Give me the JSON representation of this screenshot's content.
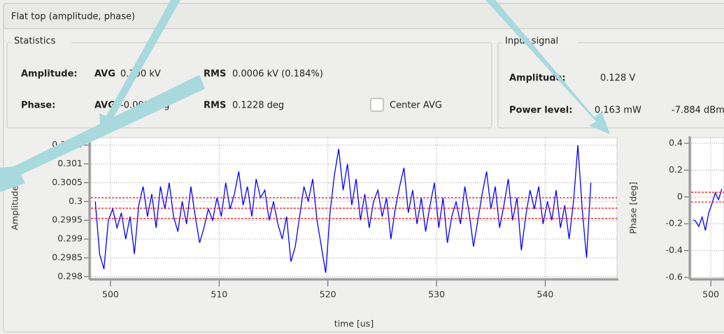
{
  "header": {
    "title": "Flat top (amplitude, phase)"
  },
  "statistics": {
    "title": "Statistics",
    "amplitude": {
      "label": "Amplitude:",
      "avg_label": "AVG",
      "avg": "0.300 kV",
      "rms_label": "RMS",
      "rms": "0.0006 kV (0.184%)"
    },
    "phase": {
      "label": "Phase:",
      "avg_label": "AVG",
      "avg": "-0.003 deg",
      "rms_label": "RMS",
      "rms": "0.1228 deg"
    },
    "checkbox": {
      "label": "Center AVG",
      "checked": false
    }
  },
  "input_signal": {
    "title": "Input signal",
    "amplitude": {
      "label": "Amplitude:",
      "value": "0.128 V"
    },
    "power": {
      "label": "Power level:",
      "value": "0.163 mW",
      "value_db": "-7.884 dBm"
    }
  },
  "chart_data": [
    {
      "type": "line",
      "ylabel": "Amplitude",
      "xlabel": "time [us]",
      "xlim": [
        498.2,
        546.6
      ],
      "xticks": [
        500,
        510,
        520,
        530,
        540
      ],
      "ylim": [
        0.29796,
        0.3017
      ],
      "yticks": [
        0.298,
        0.2985,
        0.299,
        0.2995,
        0.3,
        0.3005,
        0.301,
        0.3015
      ],
      "grid": true,
      "reference_lines": {
        "color": "#ff0000",
        "values": [
          0.3001,
          0.29982,
          0.29955
        ]
      },
      "x": [
        498.6,
        499.0,
        499.4,
        499.8,
        500.2,
        500.6,
        501.0,
        501.4,
        501.8,
        502.2,
        502.6,
        503.0,
        503.4,
        503.8,
        504.2,
        504.6,
        505.0,
        505.4,
        505.8,
        506.2,
        506.6,
        507.0,
        507.4,
        507.8,
        508.2,
        508.6,
        509.0,
        509.4,
        509.8,
        510.2,
        510.6,
        511.0,
        511.4,
        511.8,
        512.2,
        512.6,
        513.0,
        513.4,
        513.8,
        514.2,
        514.6,
        515.0,
        515.4,
        515.8,
        516.2,
        516.6,
        517.0,
        517.4,
        517.8,
        518.2,
        518.6,
        519.0,
        519.4,
        519.8,
        520.2,
        520.6,
        521.0,
        521.4,
        521.8,
        522.2,
        522.6,
        523.0,
        523.4,
        523.8,
        524.2,
        524.6,
        525.0,
        525.4,
        525.8,
        526.2,
        526.6,
        527.0,
        527.4,
        527.8,
        528.2,
        528.6,
        529.0,
        529.4,
        529.8,
        530.2,
        530.6,
        531.0,
        531.4,
        531.8,
        532.2,
        532.6,
        533.0,
        533.4,
        533.8,
        534.2,
        534.6,
        535.0,
        535.4,
        535.8,
        536.2,
        536.6,
        537.0,
        537.4,
        537.8,
        538.2,
        538.6,
        539.0,
        539.4,
        539.8,
        540.2,
        540.6,
        541.0,
        541.4,
        541.8,
        542.2,
        542.6,
        543.0,
        543.4,
        543.8,
        544.2
      ],
      "series": [
        {
          "color": "#0000ff",
          "values": [
            0.3,
            0.2986,
            0.2982,
            0.2995,
            0.2998,
            0.2993,
            0.2997,
            0.299,
            0.2996,
            0.2986,
            0.2999,
            0.3004,
            0.2996,
            0.3002,
            0.2993,
            0.3004,
            0.2998,
            0.3005,
            0.2996,
            0.2992,
            0.3,
            0.2994,
            0.3004,
            0.2996,
            0.2989,
            0.2993,
            0.2998,
            0.2995,
            0.3001,
            0.2996,
            0.3005,
            0.2998,
            0.3002,
            0.3008,
            0.2999,
            0.3004,
            0.2996,
            0.3006,
            0.3001,
            0.3003,
            0.2995,
            0.3,
            0.2994,
            0.299,
            0.2996,
            0.2984,
            0.2988,
            0.2996,
            0.3004,
            0.3,
            0.3006,
            0.2995,
            0.2988,
            0.2981,
            0.2997,
            0.3007,
            0.3014,
            0.3003,
            0.301,
            0.2999,
            0.3006,
            0.2995,
            0.3002,
            0.2993,
            0.3,
            0.3003,
            0.2996,
            0.3001,
            0.299,
            0.2998,
            0.3004,
            0.3009,
            0.2997,
            0.3003,
            0.2994,
            0.3001,
            0.2992,
            0.2999,
            0.3005,
            0.2993,
            0.3001,
            0.2989,
            0.2996,
            0.3,
            0.2994,
            0.3004,
            0.2997,
            0.2988,
            0.2995,
            0.3002,
            0.3008,
            0.2998,
            0.3004,
            0.2993,
            0.2999,
            0.3006,
            0.2995,
            0.3001,
            0.2987,
            0.2996,
            0.3003,
            0.2998,
            0.3004,
            0.2994,
            0.3,
            0.2995,
            0.3003,
            0.2993,
            0.2999,
            0.299,
            0.3,
            0.3015,
            0.2998,
            0.2985,
            0.3005
          ]
        }
      ]
    },
    {
      "type": "line",
      "ylabel": "Phase [deg]",
      "xlim": [
        498.2,
        501.2
      ],
      "xticks": [
        500
      ],
      "ylim": [
        -0.605,
        0.442
      ],
      "yticks": [
        0.4,
        0.2,
        0,
        -0.2,
        -0.4,
        -0.6
      ],
      "grid": true,
      "reference_lines": {
        "color": "#ff0000",
        "values": [
          0.035,
          -0.0375
        ]
      },
      "x": [
        498.4,
        498.6,
        498.9,
        499.2,
        499.5,
        499.8,
        500.1,
        500.4,
        500.7,
        501.0
      ],
      "series": [
        {
          "color": "#0000ff",
          "values": [
            -0.17,
            -0.18,
            -0.22,
            -0.15,
            -0.25,
            -0.12,
            -0.05,
            0.03,
            -0.02,
            0.06
          ]
        }
      ]
    }
  ]
}
